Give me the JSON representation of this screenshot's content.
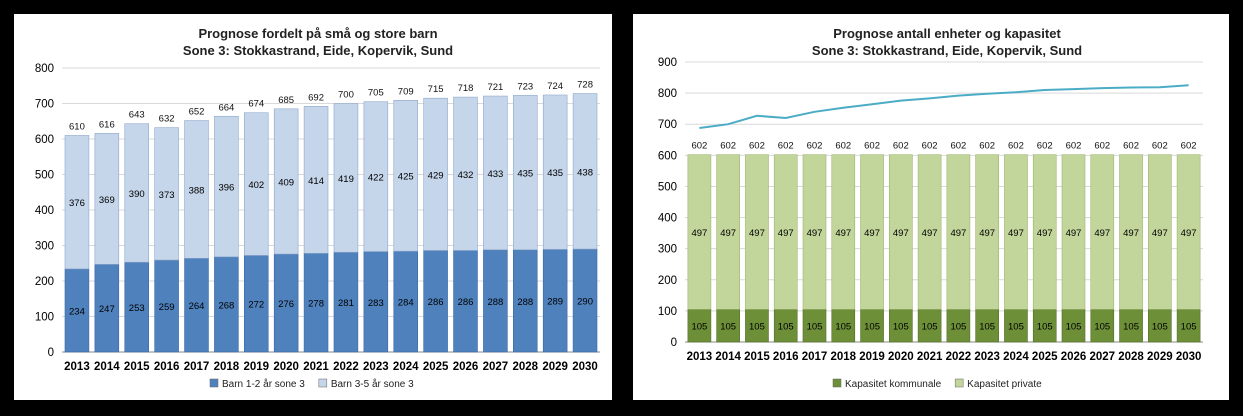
{
  "colors": {
    "left_bottom": "#4f81bd",
    "left_top": "#c5d5ea",
    "right_bottom": "#6d8f38",
    "right_top": "#c2d69b",
    "right_line": "#4bacc6",
    "gridline": "#d9d9d9"
  },
  "chart_data": [
    {
      "type": "bar",
      "stacked": true,
      "title": "Prognose fordelt på små og store barn",
      "subtitle": "Sone 3: Stokkastrand, Eide, Kopervik, Sund",
      "categories": [
        "2013",
        "2014",
        "2015",
        "2016",
        "2017",
        "2018",
        "2019",
        "2020",
        "2021",
        "2022",
        "2023",
        "2024",
        "2025",
        "2026",
        "2027",
        "2028",
        "2029",
        "2030"
      ],
      "series": [
        {
          "name": "Barn 1-2 år sone 3",
          "values": [
            234,
            247,
            253,
            259,
            264,
            268,
            272,
            276,
            278,
            281,
            283,
            284,
            286,
            286,
            288,
            288,
            289,
            290
          ]
        },
        {
          "name": "Barn 3-5 år sone 3",
          "values": [
            376,
            369,
            390,
            373,
            388,
            396,
            402,
            409,
            414,
            419,
            422,
            425,
            429,
            432,
            433,
            435,
            435,
            438
          ]
        }
      ],
      "totals": [
        610,
        616,
        643,
        632,
        652,
        664,
        674,
        685,
        692,
        700,
        705,
        709,
        715,
        718,
        721,
        723,
        724,
        728
      ],
      "ylim": [
        0,
        800
      ],
      "yticks": [
        0,
        100,
        200,
        300,
        400,
        500,
        600,
        700,
        800
      ],
      "grid": true,
      "legend_position": "bottom"
    },
    {
      "type": "bar",
      "stacked": true,
      "title": "Prognose antall enheter og kapasitet",
      "subtitle": "Sone 3: Stokkastrand, Eide, Kopervik, Sund",
      "categories": [
        "2013",
        "2014",
        "2015",
        "2016",
        "2017",
        "2018",
        "2019",
        "2020",
        "2021",
        "2022",
        "2023",
        "2024",
        "2025",
        "2026",
        "2027",
        "2028",
        "2029",
        "2030"
      ],
      "series": [
        {
          "name": "Kapasitet kommunale",
          "values": [
            105,
            105,
            105,
            105,
            105,
            105,
            105,
            105,
            105,
            105,
            105,
            105,
            105,
            105,
            105,
            105,
            105,
            105
          ]
        },
        {
          "name": "Kapasitet private",
          "values": [
            497,
            497,
            497,
            497,
            497,
            497,
            497,
            497,
            497,
            497,
            497,
            497,
            497,
            497,
            497,
            497,
            497,
            497
          ]
        }
      ],
      "totals": [
        602,
        602,
        602,
        602,
        602,
        602,
        602,
        602,
        602,
        602,
        602,
        602,
        602,
        602,
        602,
        602,
        602,
        602
      ],
      "line": {
        "values": [
          688,
          700,
          727,
          720,
          740,
          753,
          764,
          776,
          783,
          792,
          798,
          803,
          810,
          813,
          816,
          818,
          819,
          825
        ]
      },
      "ylim": [
        0,
        900
      ],
      "yticks": [
        0,
        100,
        200,
        300,
        400,
        500,
        600,
        700,
        800,
        900
      ],
      "grid": true,
      "legend_position": "bottom"
    }
  ]
}
